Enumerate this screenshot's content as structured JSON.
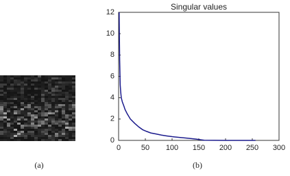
{
  "figure": {
    "panel_a": {
      "caption": "(a)"
    },
    "panel_b": {
      "caption": "(b)"
    }
  },
  "chart_data": {
    "type": "line",
    "title": "Singular values",
    "x": [
      1,
      2,
      3,
      4,
      5,
      7,
      10,
      12,
      16,
      22,
      30,
      38,
      45,
      52,
      60,
      70,
      80,
      90,
      100,
      115,
      130,
      145,
      155,
      160,
      200,
      256
    ],
    "series": [
      {
        "name": "Singular values",
        "color": "#1a1a8c",
        "values": [
          12,
          7.5,
          5.2,
          4.5,
          4,
          3.6,
          3.2,
          2.9,
          2.5,
          2,
          1.6,
          1.25,
          1,
          0.85,
          0.7,
          0.6,
          0.5,
          0.42,
          0.35,
          0.27,
          0.2,
          0.12,
          0.05,
          0.02,
          0,
          0
        ]
      }
    ],
    "xlim": [
      0,
      300
    ],
    "xticks": [
      0,
      50,
      100,
      150,
      200,
      250,
      300
    ],
    "ylim": [
      0,
      12
    ],
    "yticks": [
      0,
      2,
      4,
      6,
      8,
      10,
      12
    ],
    "grid": false
  }
}
